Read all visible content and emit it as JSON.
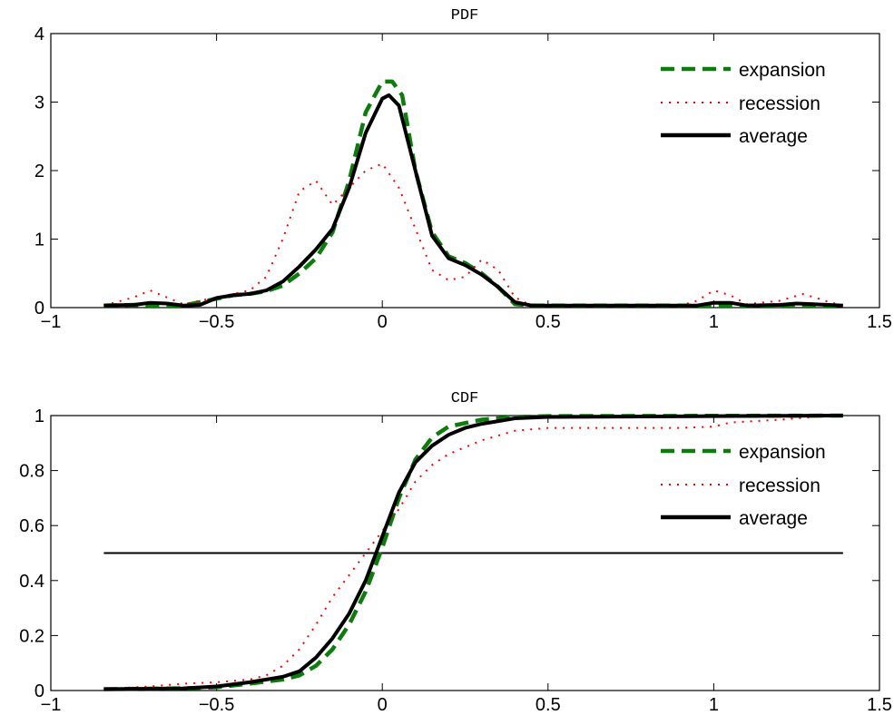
{
  "figure": {
    "legend_position": "top-right",
    "series_styles": [
      {
        "name": "expansion",
        "color": "#0a7d0a",
        "dash": "dashed"
      },
      {
        "name": "recession",
        "color": "#ff0000",
        "dash": "dotted"
      },
      {
        "name": "average",
        "color": "#000000",
        "dash": "solid"
      }
    ]
  },
  "chart_data": [
    {
      "type": "line",
      "title": "PDF",
      "xlabel": "",
      "ylabel": "",
      "xlim": [
        -1,
        1.5
      ],
      "ylim": [
        0,
        4
      ],
      "xticks": [
        -1,
        -0.5,
        0,
        0.5,
        1,
        1.5
      ],
      "xtick_labels": [
        "−1",
        "−0.5",
        "0",
        "0.5",
        "1",
        "1.5"
      ],
      "yticks": [
        0,
        1,
        2,
        3,
        4
      ],
      "ytick_labels": [
        "0",
        "1",
        "2",
        "3",
        "4"
      ],
      "grid": false,
      "legend": [
        "expansion",
        "recession",
        "average"
      ],
      "series": [
        {
          "name": "expansion",
          "x": [
            -0.84,
            -0.75,
            -0.7,
            -0.6,
            -0.5,
            -0.45,
            -0.4,
            -0.35,
            -0.3,
            -0.25,
            -0.2,
            -0.15,
            -0.1,
            -0.05,
            0.0,
            0.03,
            0.06,
            0.1,
            0.15,
            0.2,
            0.25,
            0.3,
            0.35,
            0.4,
            0.45,
            0.5,
            0.8,
            1.0,
            1.2,
            1.39
          ],
          "y": [
            0.03,
            0.04,
            0.03,
            0.03,
            0.13,
            0.18,
            0.2,
            0.24,
            0.32,
            0.5,
            0.72,
            1.1,
            1.85,
            2.85,
            3.3,
            3.3,
            3.1,
            2.0,
            1.1,
            0.75,
            0.65,
            0.5,
            0.3,
            0.05,
            0.03,
            0.03,
            0.03,
            0.03,
            0.03,
            0.03
          ]
        },
        {
          "name": "recession",
          "x": [
            -0.84,
            -0.75,
            -0.7,
            -0.65,
            -0.6,
            -0.5,
            -0.4,
            -0.35,
            -0.3,
            -0.25,
            -0.2,
            -0.15,
            -0.1,
            -0.05,
            0.0,
            0.05,
            0.1,
            0.15,
            0.2,
            0.25,
            0.3,
            0.35,
            0.4,
            0.45,
            0.9,
            0.95,
            1.0,
            1.05,
            1.1,
            1.2,
            1.27,
            1.35,
            1.39
          ],
          "y": [
            0.03,
            0.15,
            0.25,
            0.15,
            0.05,
            0.15,
            0.25,
            0.45,
            1.0,
            1.7,
            1.85,
            1.5,
            1.75,
            2.0,
            2.1,
            1.75,
            1.15,
            0.55,
            0.4,
            0.45,
            0.7,
            0.55,
            0.15,
            0.03,
            0.03,
            0.1,
            0.25,
            0.18,
            0.05,
            0.1,
            0.2,
            0.08,
            0.03
          ]
        },
        {
          "name": "average",
          "x": [
            -0.84,
            -0.75,
            -0.7,
            -0.65,
            -0.6,
            -0.55,
            -0.5,
            -0.45,
            -0.4,
            -0.35,
            -0.3,
            -0.25,
            -0.2,
            -0.15,
            -0.1,
            -0.05,
            0.0,
            0.02,
            0.05,
            0.1,
            0.15,
            0.2,
            0.25,
            0.3,
            0.35,
            0.4,
            0.45,
            0.9,
            0.95,
            1.0,
            1.05,
            1.1,
            1.2,
            1.25,
            1.3,
            1.39
          ],
          "y": [
            0.03,
            0.04,
            0.07,
            0.06,
            0.03,
            0.04,
            0.14,
            0.18,
            0.2,
            0.25,
            0.38,
            0.6,
            0.85,
            1.15,
            1.75,
            2.55,
            3.05,
            3.1,
            2.95,
            2.0,
            1.05,
            0.72,
            0.62,
            0.48,
            0.3,
            0.08,
            0.03,
            0.03,
            0.03,
            0.07,
            0.07,
            0.03,
            0.04,
            0.06,
            0.05,
            0.03
          ]
        }
      ]
    },
    {
      "type": "line",
      "title": "CDF",
      "xlabel": "",
      "ylabel": "",
      "xlim": [
        -1,
        1.5
      ],
      "ylim": [
        0,
        1
      ],
      "xticks": [
        -1,
        -0.5,
        0,
        0.5,
        1,
        1.5
      ],
      "xtick_labels": [
        "−1",
        "−0.5",
        "0",
        "0.5",
        "1",
        "1.5"
      ],
      "yticks": [
        0,
        0.2,
        0.4,
        0.6,
        0.8,
        1
      ],
      "ytick_labels": [
        "0",
        "0.2",
        "0.4",
        "0.6",
        "0.8",
        "1"
      ],
      "grid": false,
      "legend": [
        "expansion",
        "recession",
        "average"
      ],
      "reference_line": {
        "y": 0.5,
        "x_range": [
          -0.84,
          1.39
        ]
      },
      "series": [
        {
          "name": "expansion",
          "x": [
            -0.84,
            -0.6,
            -0.5,
            -0.4,
            -0.3,
            -0.25,
            -0.2,
            -0.15,
            -0.1,
            -0.05,
            0.0,
            0.05,
            0.1,
            0.15,
            0.2,
            0.3,
            0.4,
            0.5,
            1.39
          ],
          "y": [
            0.005,
            0.008,
            0.012,
            0.025,
            0.04,
            0.055,
            0.09,
            0.15,
            0.24,
            0.36,
            0.52,
            0.7,
            0.84,
            0.92,
            0.96,
            0.985,
            0.995,
            0.998,
            1.0
          ]
        },
        {
          "name": "recession",
          "x": [
            -0.84,
            -0.7,
            -0.6,
            -0.5,
            -0.4,
            -0.35,
            -0.3,
            -0.25,
            -0.2,
            -0.15,
            -0.1,
            -0.05,
            0.0,
            0.05,
            0.1,
            0.15,
            0.2,
            0.3,
            0.4,
            0.5,
            0.9,
            1.0,
            1.05,
            1.2,
            1.3,
            1.39
          ],
          "y": [
            0.005,
            0.015,
            0.025,
            0.03,
            0.04,
            0.055,
            0.09,
            0.15,
            0.24,
            0.34,
            0.42,
            0.5,
            0.58,
            0.66,
            0.76,
            0.82,
            0.86,
            0.91,
            0.945,
            0.955,
            0.955,
            0.96,
            0.975,
            0.985,
            0.995,
            1.0
          ]
        },
        {
          "name": "average",
          "x": [
            -0.84,
            -0.6,
            -0.5,
            -0.4,
            -0.35,
            -0.3,
            -0.25,
            -0.2,
            -0.15,
            -0.1,
            -0.05,
            0.0,
            0.05,
            0.1,
            0.15,
            0.2,
            0.25,
            0.3,
            0.35,
            0.4,
            0.5,
            1.0,
            1.39
          ],
          "y": [
            0.005,
            0.008,
            0.015,
            0.03,
            0.04,
            0.05,
            0.07,
            0.12,
            0.19,
            0.28,
            0.4,
            0.56,
            0.72,
            0.83,
            0.89,
            0.93,
            0.955,
            0.97,
            0.98,
            0.99,
            0.995,
            0.998,
            1.0
          ]
        }
      ]
    }
  ]
}
